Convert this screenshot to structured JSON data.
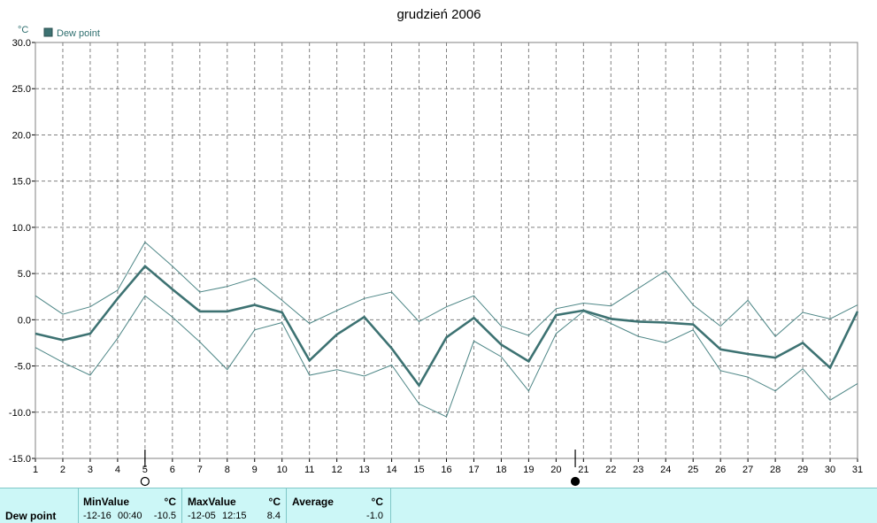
{
  "chart_data": {
    "type": "line",
    "title": "grudzień 2006",
    "y_unit": "°C",
    "legend": [
      "Dew point"
    ],
    "x": [
      1,
      2,
      3,
      4,
      5,
      6,
      7,
      8,
      9,
      10,
      11,
      12,
      13,
      14,
      15,
      16,
      17,
      18,
      19,
      20,
      21,
      22,
      23,
      24,
      25,
      26,
      27,
      28,
      29,
      30,
      31
    ],
    "ylim": [
      -15,
      30
    ],
    "yticks": [
      "30.0",
      "25.0",
      "20.0",
      "15.0",
      "10.0",
      "5.0",
      "0.0",
      "-5.0",
      "-10.0",
      "-15.0"
    ],
    "grid": true,
    "series": [
      {
        "name": "Dew point",
        "values": [
          -1.5,
          -2.2,
          -1.5,
          2.3,
          5.8,
          3.3,
          0.9,
          0.9,
          1.6,
          0.8,
          -4.4,
          -1.6,
          0.3,
          -3.1,
          -7.1,
          -1.9,
          0.2,
          -2.7,
          -4.5,
          0.5,
          1.0,
          0.1,
          -0.2,
          -0.3,
          -0.5,
          -3.2,
          -3.7,
          -4.1,
          -2.5,
          -5.2,
          0.9
        ]
      },
      {
        "role": "max",
        "values": [
          2.6,
          0.6,
          1.4,
          3.2,
          8.4,
          5.8,
          3.0,
          3.6,
          4.5,
          2.1,
          -0.4,
          1.0,
          2.3,
          3.0,
          -0.2,
          1.4,
          2.6,
          -0.7,
          -1.7,
          1.2,
          1.8,
          1.5,
          3.4,
          5.3,
          1.6,
          -0.7,
          2.1,
          -1.8,
          0.8,
          0.1,
          1.6
        ]
      },
      {
        "role": "min",
        "values": [
          -3.0,
          -4.6,
          -6.0,
          -2.0,
          2.6,
          0.3,
          -2.4,
          -5.4,
          -1.1,
          -0.3,
          -6.0,
          -5.4,
          -6.1,
          -4.9,
          -9.1,
          -10.5,
          -2.3,
          -4.0,
          -7.7,
          -1.5,
          0.9,
          -0.4,
          -1.8,
          -2.5,
          -1.1,
          -5.5,
          -6.2,
          -7.7,
          -5.3,
          -8.7,
          -6.9
        ]
      }
    ],
    "moon_phases": [
      {
        "day": 5,
        "phase": "full"
      },
      {
        "day": 20.7,
        "phase": "new"
      }
    ]
  },
  "stats": {
    "row_label": "Dew point",
    "min": {
      "header": "MinValue",
      "unit": "°C",
      "date": "-12-16",
      "time": "00:40",
      "value": "-10.5"
    },
    "max": {
      "header": "MaxValue",
      "unit": "°C",
      "date": "-12-05",
      "time": "12:15",
      "value": "8.4"
    },
    "avg": {
      "header": "Average",
      "unit": "°C",
      "value": "-1.0"
    }
  },
  "colors": {
    "line": "#3d7272",
    "thin": "#4d8686",
    "grid": "#808080",
    "panel": "#ccf7f7"
  }
}
